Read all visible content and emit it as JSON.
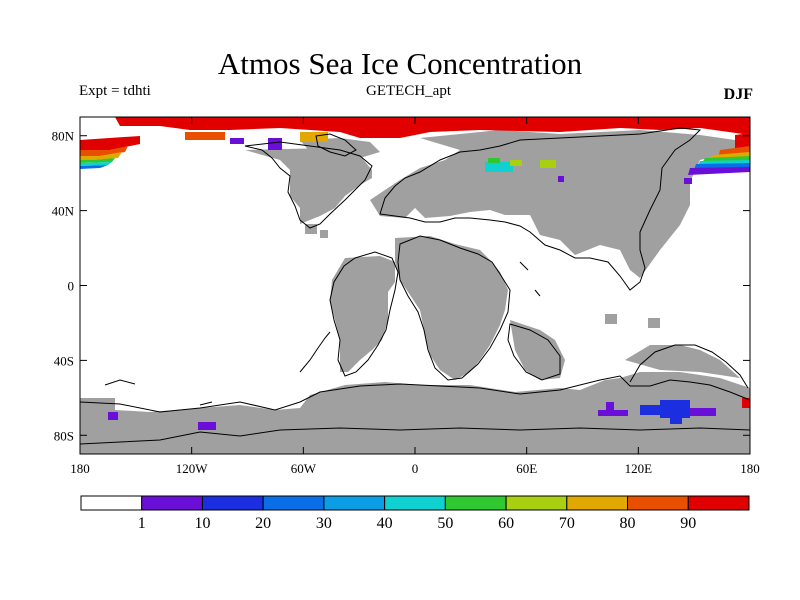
{
  "title": "Atmos Sea Ice Concentration",
  "subtitle_left": "Expt = tdhti",
  "subtitle_center": "GETECH_apt",
  "subtitle_right": "DJF",
  "map": {
    "projection": "cylindrical equidistant",
    "lon_range": [
      -180,
      180
    ],
    "lat_range": [
      -90,
      90
    ],
    "y_ticks": [
      {
        "lat": 80,
        "label": "80N"
      },
      {
        "lat": 40,
        "label": "40N"
      },
      {
        "lat": 0,
        "label": "0"
      },
      {
        "lat": -40,
        "label": "40S"
      },
      {
        "lat": -80,
        "label": "80S"
      }
    ],
    "x_ticks": [
      {
        "lon": -180,
        "label": "180"
      },
      {
        "lon": -120,
        "label": "120W"
      },
      {
        "lon": -60,
        "label": "60W"
      },
      {
        "lon": 0,
        "label": "0"
      },
      {
        "lon": 60,
        "label": "60E"
      },
      {
        "lon": 120,
        "label": "120E"
      },
      {
        "lon": 180,
        "label": "180"
      }
    ],
    "land_color": "#a0a0a0",
    "ocean_color": "#ffffff"
  },
  "colorbar": {
    "colors": [
      "#ffffff",
      "#6a0fd8",
      "#1c2fe0",
      "#0a6ee6",
      "#0b9ee6",
      "#10d0d0",
      "#30c830",
      "#a8d010",
      "#e0a800",
      "#e85000",
      "#e00000"
    ],
    "labels": [
      "1",
      "10",
      "20",
      "30",
      "40",
      "50",
      "60",
      "70",
      "80",
      "90"
    ]
  }
}
